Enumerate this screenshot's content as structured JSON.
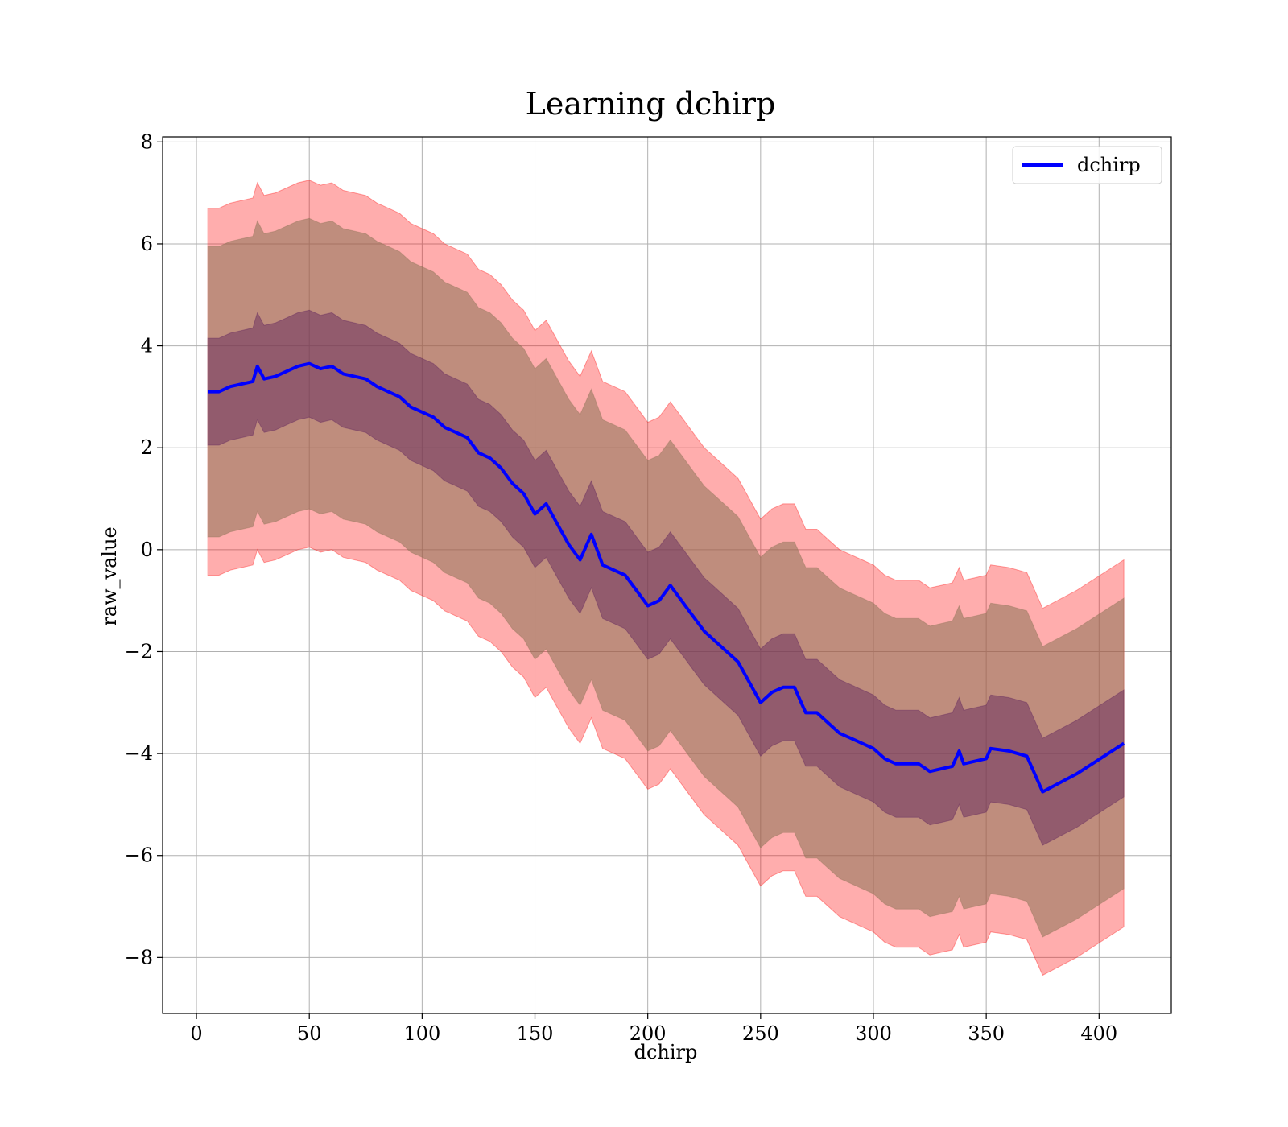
{
  "chart_data": {
    "type": "line",
    "title": "Learning dchirp",
    "xlabel": "dchirp",
    "ylabel": "raw_value",
    "xlim": [
      -15,
      432
    ],
    "ylim": [
      -9.1,
      8.1
    ],
    "xticks": [
      0,
      50,
      100,
      150,
      200,
      250,
      300,
      350,
      400
    ],
    "xtick_labels": [
      "0",
      "50",
      "100",
      "150",
      "200",
      "250",
      "300",
      "350",
      "400"
    ],
    "yticks": [
      -8,
      -6,
      -4,
      -2,
      0,
      2,
      4,
      6,
      8
    ],
    "ytick_labels": [
      "−8",
      "−6",
      "−4",
      "−2",
      "0",
      "2",
      "4",
      "6",
      "8"
    ],
    "grid": true,
    "legend": {
      "position": "top-right",
      "entries": [
        "dchirp"
      ]
    },
    "series": [
      {
        "name": "dchirp",
        "color": "#0000ff",
        "x": [
          5,
          10,
          15,
          20,
          25,
          27,
          30,
          35,
          40,
          45,
          50,
          55,
          60,
          65,
          70,
          75,
          80,
          85,
          90,
          95,
          100,
          105,
          110,
          115,
          120,
          125,
          130,
          135,
          140,
          145,
          150,
          155,
          160,
          165,
          170,
          175,
          180,
          185,
          190,
          195,
          200,
          205,
          210,
          215,
          220,
          225,
          230,
          235,
          240,
          245,
          250,
          255,
          260,
          265,
          270,
          275,
          280,
          285,
          290,
          295,
          300,
          305,
          310,
          315,
          320,
          325,
          330,
          335,
          338,
          340,
          345,
          350,
          352,
          360,
          368,
          375,
          390,
          411
        ],
        "y": [
          3.1,
          3.1,
          3.2,
          3.25,
          3.3,
          3.6,
          3.35,
          3.4,
          3.5,
          3.6,
          3.65,
          3.55,
          3.6,
          3.45,
          3.4,
          3.35,
          3.2,
          3.1,
          3.0,
          2.8,
          2.7,
          2.6,
          2.4,
          2.3,
          2.2,
          1.9,
          1.8,
          1.6,
          1.3,
          1.1,
          0.7,
          0.9,
          0.5,
          0.1,
          -0.2,
          0.3,
          -0.3,
          -0.4,
          -0.5,
          -0.8,
          -1.1,
          -1.0,
          -0.7,
          -1.0,
          -1.3,
          -1.6,
          -1.8,
          -2.0,
          -2.2,
          -2.6,
          -3.0,
          -2.8,
          -2.7,
          -2.7,
          -3.2,
          -3.2,
          -3.4,
          -3.6,
          -3.7,
          -3.8,
          -3.9,
          -4.1,
          -4.2,
          -4.2,
          -4.2,
          -4.35,
          -4.3,
          -4.25,
          -3.95,
          -4.2,
          -4.15,
          -4.1,
          -3.9,
          -3.95,
          -4.05,
          -4.75,
          -4.4,
          -3.8
        ]
      }
    ],
    "bands": [
      {
        "label": "",
        "color": "#ff0000",
        "opacity": 0.32,
        "half_width": 3.6
      },
      {
        "label": "",
        "color": "#8b7355",
        "opacity": 0.55,
        "half_width": 2.85
      },
      {
        "label": "",
        "color": "#5a1e5c",
        "opacity": 0.45,
        "half_width": 1.05
      }
    ]
  }
}
